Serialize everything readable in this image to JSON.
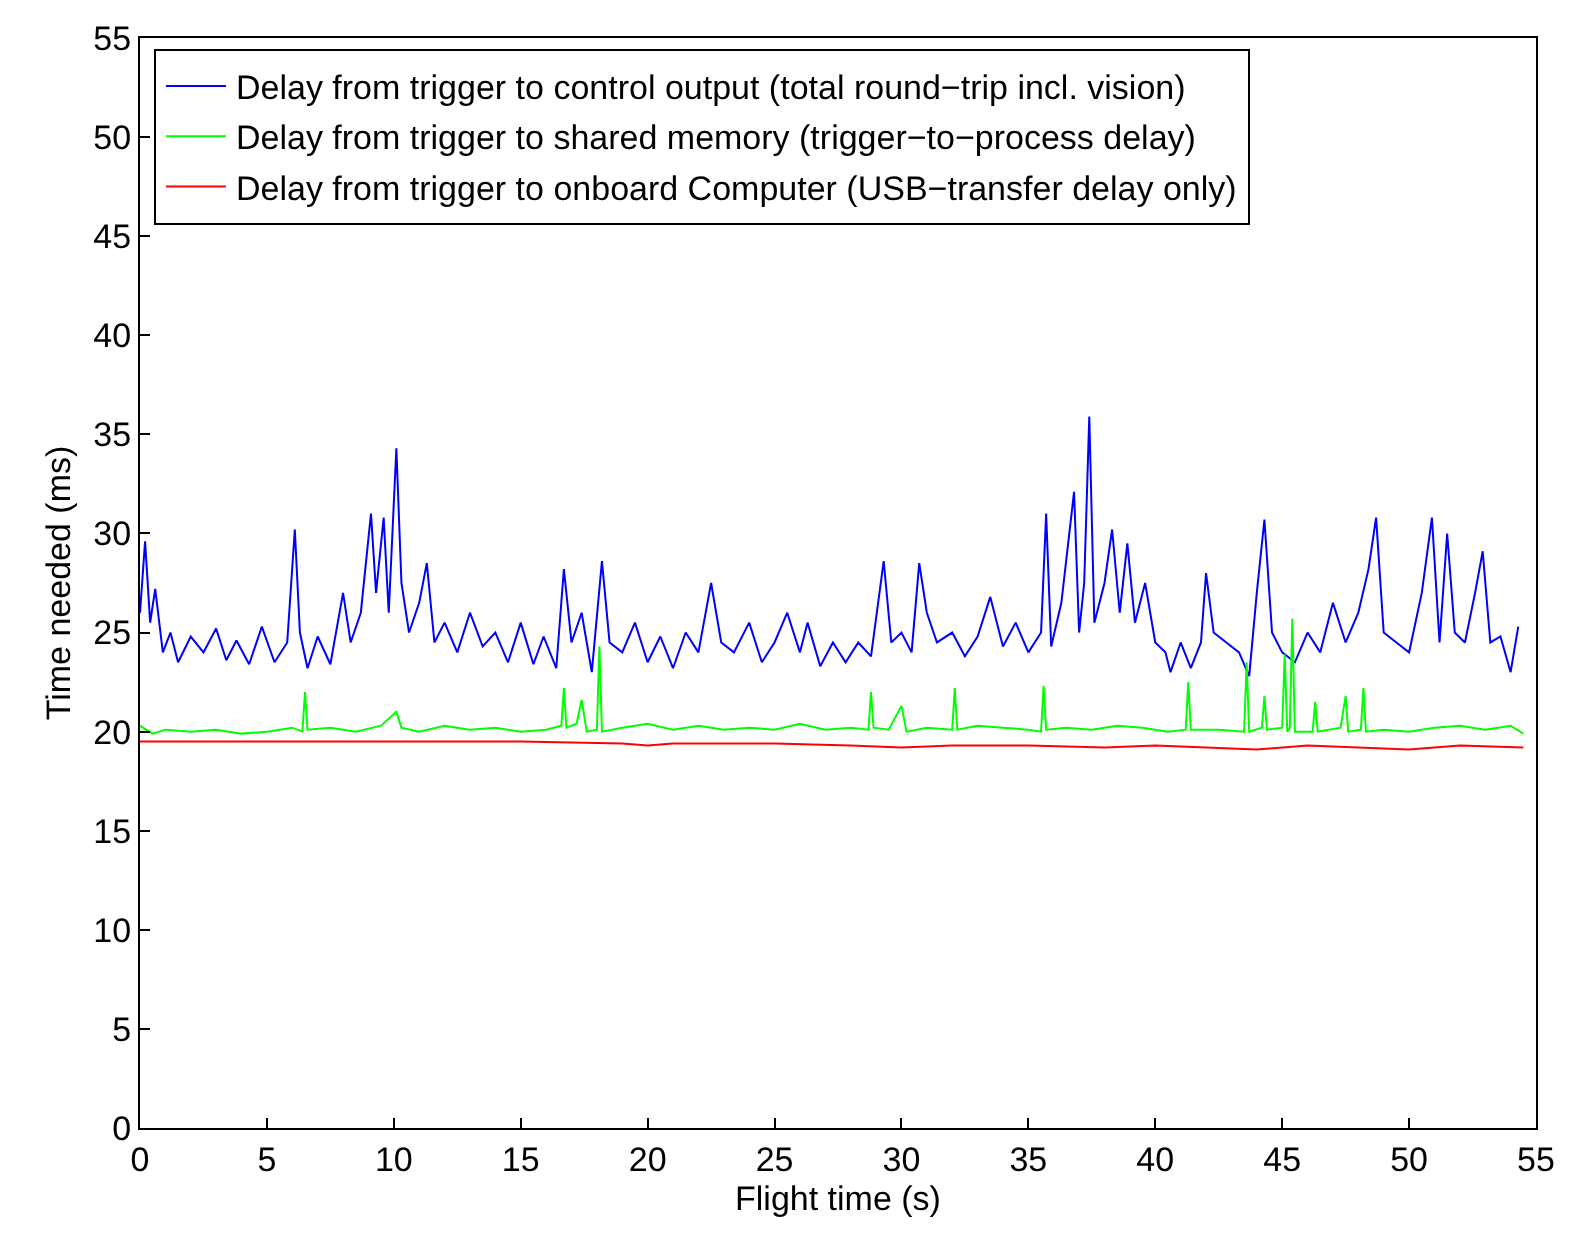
{
  "chart_data": {
    "type": "line",
    "xlabel": "Flight time (s)",
    "ylabel": "Time needed (ms)",
    "xlim": [
      0,
      55
    ],
    "xticks": [
      0,
      5,
      10,
      15,
      20,
      25,
      30,
      35,
      40,
      45,
      50,
      55
    ],
    "ylim": [
      0,
      55
    ],
    "yticks": [
      0,
      5,
      10,
      15,
      20,
      25,
      30,
      35,
      40,
      45,
      50,
      55
    ],
    "legend": "top left",
    "marker": "none",
    "line_style": "solid",
    "series": [
      {
        "name": "Delay from trigger to control output (total round−trip incl. vision)",
        "color": "#0000ff",
        "x": [
          0,
          0.2,
          0.4,
          0.6,
          0.9,
          1.2,
          1.5,
          2,
          2.5,
          3,
          3.4,
          3.8,
          4.3,
          4.8,
          5.3,
          5.8,
          6.1,
          6.3,
          6.6,
          7,
          7.5,
          8,
          8.3,
          8.7,
          9.1,
          9.3,
          9.6,
          9.8,
          10.1,
          10.3,
          10.6,
          11,
          11.3,
          11.6,
          12,
          12.5,
          13,
          13.5,
          14,
          14.5,
          15,
          15.5,
          15.9,
          16.4,
          16.7,
          17,
          17.4,
          17.8,
          18.2,
          18.5,
          19,
          19.5,
          20,
          20.5,
          21,
          21.5,
          22,
          22.5,
          22.9,
          23.4,
          24,
          24.5,
          25,
          25.5,
          26,
          26.3,
          26.8,
          27.3,
          27.8,
          28.3,
          28.8,
          29.3,
          29.6,
          30,
          30.4,
          30.7,
          31,
          31.4,
          32,
          32.5,
          33,
          33.5,
          34,
          34.5,
          35,
          35.5,
          35.7,
          35.9,
          36.3,
          36.8,
          37,
          37.2,
          37.4,
          37.6,
          38,
          38.3,
          38.6,
          38.9,
          39.2,
          39.6,
          40,
          40.4,
          40.6,
          41,
          41.4,
          41.8,
          42,
          42.3,
          42.8,
          43.3,
          43.7,
          44,
          44.3,
          44.6,
          45,
          45.5,
          46,
          46.5,
          47,
          47.5,
          48,
          48.4,
          48.7,
          49,
          49.5,
          50,
          50.5,
          50.9,
          51.2,
          51.5,
          51.8,
          52.2,
          52.6,
          52.9,
          53.2,
          53.6,
          54,
          54.3
        ],
        "values": [
          26,
          29.6,
          25.5,
          27.2,
          24,
          25,
          23.5,
          24.8,
          24,
          25.2,
          23.6,
          24.6,
          23.4,
          25.3,
          23.5,
          24.5,
          30.2,
          25,
          23.2,
          24.8,
          23.4,
          27,
          24.5,
          26,
          31,
          27,
          30.8,
          26,
          34.3,
          27.5,
          25,
          26.5,
          28.5,
          24.5,
          25.5,
          24,
          26,
          24.3,
          25,
          23.5,
          25.5,
          23.4,
          24.8,
          23.2,
          28.2,
          24.5,
          26,
          23,
          28.6,
          24.5,
          24,
          25.5,
          23.5,
          24.8,
          23.2,
          25,
          24,
          27.5,
          24.5,
          24,
          25.5,
          23.5,
          24.5,
          26,
          24,
          25.5,
          23.3,
          24.5,
          23.5,
          24.5,
          23.8,
          28.6,
          24.5,
          25,
          24,
          28.5,
          26,
          24.5,
          25,
          23.8,
          24.8,
          26.8,
          24.3,
          25.5,
          24,
          25,
          31,
          24.3,
          26.5,
          32.1,
          25,
          27.5,
          35.9,
          25.5,
          27.5,
          30.2,
          26,
          29.5,
          25.5,
          27.5,
          24.5,
          24,
          23,
          24.5,
          23.2,
          24.5,
          28,
          25,
          24.5,
          24,
          22.8,
          27,
          30.7,
          25,
          24,
          23.5,
          25,
          24,
          26.5,
          24.5,
          26,
          28.2,
          30.8,
          25,
          24.5,
          24,
          27,
          30.8,
          24.5,
          30,
          25,
          24.5,
          27,
          29.1,
          24.5,
          24.8,
          23,
          25.3
        ]
      },
      {
        "name": "Delay from trigger to shared memory (trigger−to−process delay)",
        "color": "#00ff00",
        "x": [
          0,
          0.5,
          1,
          2,
          3,
          4,
          5,
          6,
          6.4,
          6.5,
          6.6,
          7.5,
          8.5,
          9.5,
          10.1,
          10.3,
          11,
          12,
          13,
          14,
          15,
          16,
          16.6,
          16.7,
          16.8,
          17.2,
          17.4,
          17.6,
          18,
          18.1,
          18.2,
          19,
          20,
          21,
          22,
          23,
          24,
          25,
          26,
          27,
          28,
          28.7,
          28.8,
          28.9,
          29.5,
          30,
          30.2,
          31,
          32,
          32.1,
          32.2,
          33,
          34,
          35,
          35.5,
          35.6,
          35.7,
          36.5,
          37.5,
          38.5,
          39.5,
          40.5,
          41.2,
          41.3,
          41.4,
          42.5,
          43.5,
          43.6,
          43.7,
          44.2,
          44.3,
          44.4,
          45,
          45.1,
          45.2,
          45.3,
          45.4,
          45.5,
          46.2,
          46.3,
          46.4,
          47.3,
          47.5,
          47.6,
          48.1,
          48.2,
          48.3,
          49,
          50,
          51,
          52,
          53,
          54,
          54.5
        ],
        "values": [
          20.3,
          19.9,
          20.1,
          20.0,
          20.1,
          19.9,
          20.0,
          20.2,
          20,
          22,
          20.1,
          20.2,
          20.0,
          20.3,
          21,
          20.2,
          20.0,
          20.3,
          20.1,
          20.2,
          20.0,
          20.1,
          20.3,
          22.2,
          20.2,
          20.4,
          21.6,
          20.0,
          20.1,
          24.3,
          20.0,
          20.2,
          20.4,
          20.1,
          20.3,
          20.1,
          20.2,
          20.1,
          20.4,
          20.1,
          20.2,
          20.1,
          22,
          20.2,
          20.1,
          21.3,
          20.0,
          20.2,
          20.1,
          22.2,
          20.1,
          20.3,
          20.2,
          20.1,
          20.0,
          22.3,
          20.1,
          20.2,
          20.1,
          20.3,
          20.2,
          20.0,
          20.1,
          22.5,
          20.1,
          20.1,
          20.0,
          23.5,
          20.0,
          20.2,
          21.8,
          20.1,
          20.2,
          23.9,
          20.0,
          20.2,
          25.7,
          20.0,
          20.0,
          21.5,
          20.0,
          20.2,
          21.8,
          20.0,
          20.1,
          22.2,
          20.0,
          20.1,
          20.0,
          20.2,
          20.3,
          20.1,
          20.3,
          19.9
        ]
      },
      {
        "name": "Delay from trigger to onboard Computer (USB−transfer delay only)",
        "color": "#ff0000",
        "x": [
          0,
          5,
          10,
          15,
          19,
          20,
          21,
          25,
          28,
          30,
          32,
          35,
          38,
          40,
          42,
          44,
          46,
          48,
          50,
          52,
          54.5
        ],
        "values": [
          19.5,
          19.5,
          19.5,
          19.5,
          19.4,
          19.3,
          19.4,
          19.4,
          19.3,
          19.2,
          19.3,
          19.3,
          19.2,
          19.3,
          19.2,
          19.1,
          19.3,
          19.2,
          19.1,
          19.3,
          19.2
        ]
      }
    ]
  }
}
